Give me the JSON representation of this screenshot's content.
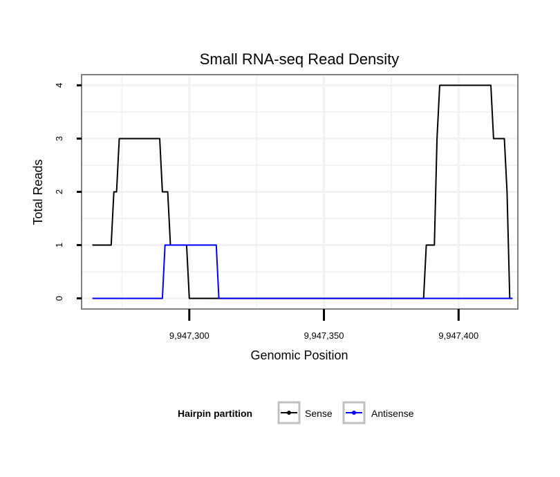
{
  "chart_data": {
    "type": "line",
    "title": "Small RNA-seq Read Density",
    "xlabel": "Genomic Position",
    "ylabel": "Total Reads",
    "xlim": [
      9947260,
      9947422
    ],
    "ylim": [
      -0.2,
      4.2
    ],
    "x_ticks": [
      9947300,
      9947350,
      9947400
    ],
    "x_tick_labels": [
      "9,947,300",
      "9,947,350",
      "9,947,400"
    ],
    "y_ticks": [
      0,
      1,
      2,
      3,
      4
    ],
    "y_tick_labels": [
      "0",
      "1",
      "2",
      "3",
      "4"
    ],
    "grid": true,
    "legend": {
      "title": "Hairpin partition",
      "position": "bottom",
      "entries": [
        "Sense",
        "Antisense"
      ]
    },
    "series": [
      {
        "name": "Sense",
        "color": "#000000",
        "x": [
          9947264,
          9947271,
          9947272,
          9947273,
          9947274,
          9947275,
          9947289,
          9947290,
          9947292,
          9947293,
          9947299,
          9947300,
          9947387,
          9947388,
          9947391,
          9947392,
          9947393,
          9947412,
          9947413,
          9947417,
          9947418,
          9947419,
          9947420
        ],
        "y": [
          1,
          1,
          2,
          2,
          3,
          3,
          3,
          2,
          2,
          1,
          1,
          0,
          0,
          1,
          1,
          3,
          4,
          4,
          3,
          3,
          2,
          0,
          0
        ]
      },
      {
        "name": "Antisense",
        "color": "#0000ff",
        "x": [
          9947264,
          9947290,
          9947291,
          9947310,
          9947311,
          9947420
        ],
        "y": [
          0,
          0,
          1,
          1,
          0,
          0
        ]
      }
    ]
  }
}
